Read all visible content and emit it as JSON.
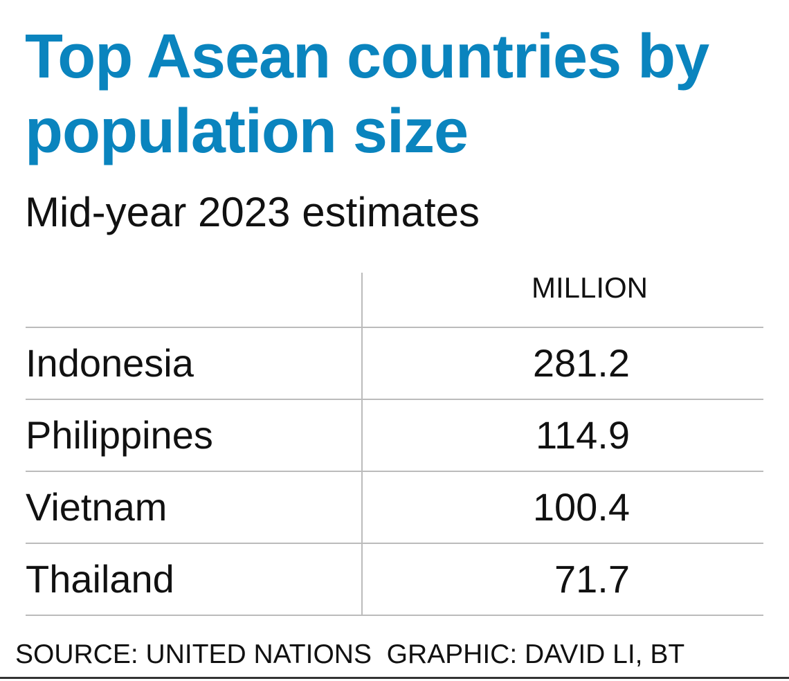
{
  "header": {
    "title": "Top Asean countries by population size",
    "subtitle": "Mid-year 2023 estimates"
  },
  "table": {
    "columns": [
      "MILLION"
    ],
    "rows": [
      [
        "Indonesia",
        281.2
      ],
      [
        "Philippines",
        114.9
      ],
      [
        "Vietnam",
        100.4
      ],
      [
        "Thailand",
        71.7
      ]
    ]
  },
  "footer": {
    "source": "SOURCE: UNITED NATIONS",
    "credit": "GRAPHIC: DAVID LI, BT"
  }
}
